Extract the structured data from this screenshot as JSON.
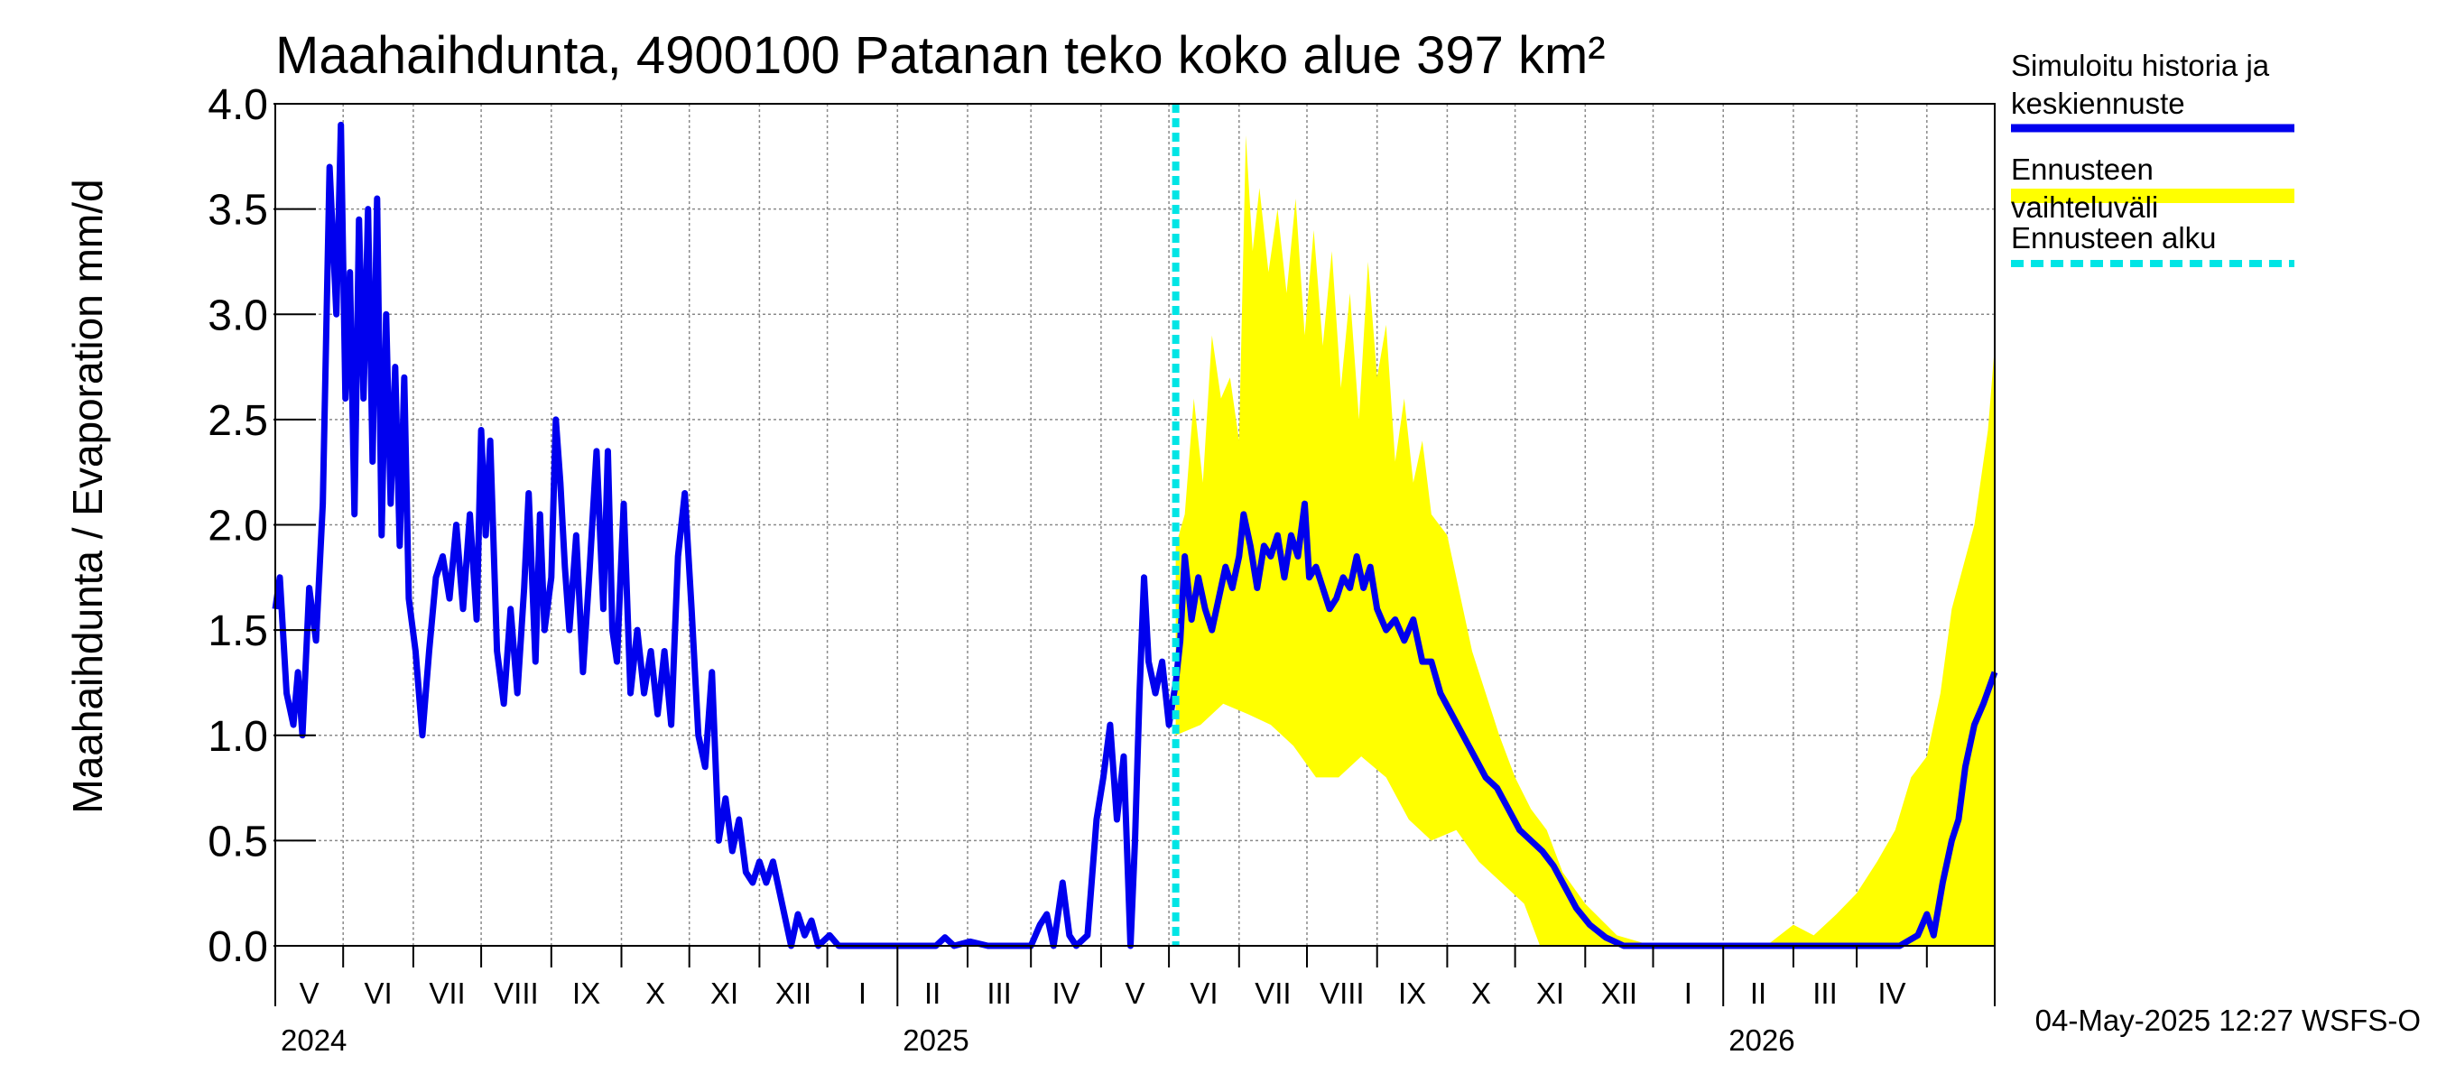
{
  "title": "Maahaihdunta, 4900100 Patanan teko koko alue 397 km²",
  "ylabel": "Maahaihdunta / Evaporation   mm/d",
  "footer": "04-May-2025 12:27 WSFS-O",
  "legend": [
    {
      "label": "Simuloitu historia ja keskiennuste",
      "color": "#0000ee",
      "style": "solid"
    },
    {
      "label": "Ennusteen vaihteluväli",
      "color": "#ffff00",
      "style": "band"
    },
    {
      "label": "Ennusteen alku",
      "color": "#00e5e5",
      "style": "dashed"
    }
  ],
  "chart_data": {
    "type": "line",
    "x_start": "2024-04-01",
    "x_end": "2026-05-01",
    "ylim": [
      0,
      4.0
    ],
    "yticks": [
      "0.0",
      "0.5",
      "1.0",
      "1.5",
      "2.0",
      "2.5",
      "3.0",
      "3.5",
      "4.0"
    ],
    "grid": true,
    "months": [
      "V",
      "VI",
      "VII",
      "VIII",
      "IX",
      "X",
      "XI",
      "XII",
      "I",
      "II",
      "III",
      "IV",
      "V",
      "VI",
      "VII",
      "VIII",
      "IX",
      "X",
      "XI",
      "XII",
      "I",
      "II",
      "III",
      "IV"
    ],
    "years": [
      "2024",
      "2025",
      "2026"
    ],
    "forecast_start": "2025-05-04",
    "series": [
      {
        "name": "Simuloitu historia ja keskiennuste",
        "color": "#0000ee",
        "points": [
          [
            "2024-04-01",
            1.6
          ],
          [
            "2024-04-03",
            1.75
          ],
          [
            "2024-04-06",
            1.2
          ],
          [
            "2024-04-09",
            1.05
          ],
          [
            "2024-04-11",
            1.3
          ],
          [
            "2024-04-13",
            1.0
          ],
          [
            "2024-04-16",
            1.7
          ],
          [
            "2024-04-19",
            1.45
          ],
          [
            "2024-04-22",
            2.1
          ],
          [
            "2024-04-25",
            3.7
          ],
          [
            "2024-04-28",
            3.0
          ],
          [
            "2024-04-30",
            3.9
          ],
          [
            "2024-05-02",
            2.6
          ],
          [
            "2024-05-04",
            3.2
          ],
          [
            "2024-05-06",
            2.05
          ],
          [
            "2024-05-08",
            3.45
          ],
          [
            "2024-05-10",
            2.6
          ],
          [
            "2024-05-12",
            3.5
          ],
          [
            "2024-05-14",
            2.3
          ],
          [
            "2024-05-16",
            3.55
          ],
          [
            "2024-05-18",
            1.95
          ],
          [
            "2024-05-20",
            3.0
          ],
          [
            "2024-05-22",
            2.1
          ],
          [
            "2024-05-24",
            2.75
          ],
          [
            "2024-05-26",
            1.9
          ],
          [
            "2024-05-28",
            2.7
          ],
          [
            "2024-05-30",
            1.65
          ],
          [
            "2024-06-02",
            1.4
          ],
          [
            "2024-06-05",
            1.0
          ],
          [
            "2024-06-08",
            1.4
          ],
          [
            "2024-06-11",
            1.75
          ],
          [
            "2024-06-14",
            1.85
          ],
          [
            "2024-06-17",
            1.65
          ],
          [
            "2024-06-20",
            2.0
          ],
          [
            "2024-06-23",
            1.6
          ],
          [
            "2024-06-26",
            2.05
          ],
          [
            "2024-06-29",
            1.55
          ],
          [
            "2024-07-01",
            2.45
          ],
          [
            "2024-07-03",
            1.95
          ],
          [
            "2024-07-05",
            2.4
          ],
          [
            "2024-07-08",
            1.4
          ],
          [
            "2024-07-11",
            1.15
          ],
          [
            "2024-07-14",
            1.6
          ],
          [
            "2024-07-17",
            1.2
          ],
          [
            "2024-07-20",
            1.7
          ],
          [
            "2024-07-22",
            2.15
          ],
          [
            "2024-07-25",
            1.35
          ],
          [
            "2024-07-27",
            2.05
          ],
          [
            "2024-07-29",
            1.5
          ],
          [
            "2024-08-01",
            1.75
          ],
          [
            "2024-08-03",
            2.5
          ],
          [
            "2024-08-05",
            2.2
          ],
          [
            "2024-08-07",
            1.8
          ],
          [
            "2024-08-09",
            1.5
          ],
          [
            "2024-08-12",
            1.95
          ],
          [
            "2024-08-15",
            1.3
          ],
          [
            "2024-08-18",
            1.8
          ],
          [
            "2024-08-21",
            2.35
          ],
          [
            "2024-08-24",
            1.6
          ],
          [
            "2024-08-26",
            2.35
          ],
          [
            "2024-08-28",
            1.5
          ],
          [
            "2024-08-30",
            1.35
          ],
          [
            "2024-09-02",
            2.1
          ],
          [
            "2024-09-05",
            1.2
          ],
          [
            "2024-09-08",
            1.5
          ],
          [
            "2024-09-11",
            1.2
          ],
          [
            "2024-09-14",
            1.4
          ],
          [
            "2024-09-17",
            1.1
          ],
          [
            "2024-09-20",
            1.4
          ],
          [
            "2024-09-23",
            1.05
          ],
          [
            "2024-09-26",
            1.85
          ],
          [
            "2024-09-29",
            2.15
          ],
          [
            "2024-10-02",
            1.6
          ],
          [
            "2024-10-05",
            1.0
          ],
          [
            "2024-10-08",
            0.85
          ],
          [
            "2024-10-11",
            1.3
          ],
          [
            "2024-10-14",
            0.5
          ],
          [
            "2024-10-17",
            0.7
          ],
          [
            "2024-10-20",
            0.45
          ],
          [
            "2024-10-23",
            0.6
          ],
          [
            "2024-10-26",
            0.35
          ],
          [
            "2024-10-29",
            0.3
          ],
          [
            "2024-11-01",
            0.4
          ],
          [
            "2024-11-04",
            0.3
          ],
          [
            "2024-11-07",
            0.4
          ],
          [
            "2024-11-10",
            0.25
          ],
          [
            "2024-11-13",
            0.1
          ],
          [
            "2024-11-15",
            0.0
          ],
          [
            "2024-11-18",
            0.15
          ],
          [
            "2024-11-21",
            0.05
          ],
          [
            "2024-11-24",
            0.12
          ],
          [
            "2024-11-27",
            0.0
          ],
          [
            "2024-12-02",
            0.05
          ],
          [
            "2024-12-06",
            0.0
          ],
          [
            "2024-12-15",
            0.0
          ],
          [
            "2025-01-01",
            0.0
          ],
          [
            "2025-01-18",
            0.0
          ],
          [
            "2025-01-22",
            0.04
          ],
          [
            "2025-01-26",
            0.0
          ],
          [
            "2025-02-02",
            0.02
          ],
          [
            "2025-02-10",
            0.0
          ],
          [
            "2025-03-01",
            0.0
          ],
          [
            "2025-03-05",
            0.1
          ],
          [
            "2025-03-08",
            0.15
          ],
          [
            "2025-03-11",
            0.0
          ],
          [
            "2025-03-15",
            0.3
          ],
          [
            "2025-03-18",
            0.05
          ],
          [
            "2025-03-21",
            0.0
          ],
          [
            "2025-03-26",
            0.05
          ],
          [
            "2025-03-30",
            0.6
          ],
          [
            "2025-04-02",
            0.8
          ],
          [
            "2025-04-05",
            1.05
          ],
          [
            "2025-04-08",
            0.6
          ],
          [
            "2025-04-11",
            0.9
          ],
          [
            "2025-04-14",
            0.0
          ],
          [
            "2025-04-16",
            0.5
          ],
          [
            "2025-04-18",
            1.2
          ],
          [
            "2025-04-20",
            1.75
          ],
          [
            "2025-04-22",
            1.35
          ],
          [
            "2025-04-25",
            1.2
          ],
          [
            "2025-04-28",
            1.35
          ],
          [
            "2025-05-01",
            1.05
          ],
          [
            "2025-05-04",
            1.25
          ],
          [
            "2025-05-06",
            1.45
          ],
          [
            "2025-05-08",
            1.85
          ],
          [
            "2025-05-11",
            1.55
          ],
          [
            "2025-05-14",
            1.75
          ],
          [
            "2025-05-17",
            1.6
          ],
          [
            "2025-05-20",
            1.5
          ],
          [
            "2025-05-23",
            1.65
          ],
          [
            "2025-05-26",
            1.8
          ],
          [
            "2025-05-29",
            1.7
          ],
          [
            "2025-06-01",
            1.85
          ],
          [
            "2025-06-03",
            2.05
          ],
          [
            "2025-06-06",
            1.9
          ],
          [
            "2025-06-09",
            1.7
          ],
          [
            "2025-06-12",
            1.9
          ],
          [
            "2025-06-15",
            1.85
          ],
          [
            "2025-06-18",
            1.95
          ],
          [
            "2025-06-21",
            1.75
          ],
          [
            "2025-06-24",
            1.95
          ],
          [
            "2025-06-27",
            1.85
          ],
          [
            "2025-06-30",
            2.1
          ],
          [
            "2025-07-02",
            1.75
          ],
          [
            "2025-07-05",
            1.8
          ],
          [
            "2025-07-08",
            1.7
          ],
          [
            "2025-07-11",
            1.6
          ],
          [
            "2025-07-14",
            1.65
          ],
          [
            "2025-07-17",
            1.75
          ],
          [
            "2025-07-20",
            1.7
          ],
          [
            "2025-07-23",
            1.85
          ],
          [
            "2025-07-26",
            1.7
          ],
          [
            "2025-07-29",
            1.8
          ],
          [
            "2025-08-01",
            1.6
          ],
          [
            "2025-08-05",
            1.5
          ],
          [
            "2025-08-09",
            1.55
          ],
          [
            "2025-08-13",
            1.45
          ],
          [
            "2025-08-17",
            1.55
          ],
          [
            "2025-08-21",
            1.35
          ],
          [
            "2025-08-25",
            1.35
          ],
          [
            "2025-08-29",
            1.2
          ],
          [
            "2025-09-03",
            1.1
          ],
          [
            "2025-09-08",
            1.0
          ],
          [
            "2025-09-13",
            0.9
          ],
          [
            "2025-09-18",
            0.8
          ],
          [
            "2025-09-23",
            0.75
          ],
          [
            "2025-09-28",
            0.65
          ],
          [
            "2025-10-03",
            0.55
          ],
          [
            "2025-10-08",
            0.5
          ],
          [
            "2025-10-13",
            0.45
          ],
          [
            "2025-10-18",
            0.38
          ],
          [
            "2025-10-23",
            0.28
          ],
          [
            "2025-10-28",
            0.18
          ],
          [
            "2025-11-03",
            0.1
          ],
          [
            "2025-11-10",
            0.04
          ],
          [
            "2025-11-18",
            0.0
          ],
          [
            "2026-01-01",
            0.0
          ],
          [
            "2026-03-20",
            0.0
          ],
          [
            "2026-03-28",
            0.05
          ],
          [
            "2026-04-01",
            0.15
          ],
          [
            "2026-04-04",
            0.05
          ],
          [
            "2026-04-08",
            0.3
          ],
          [
            "2026-04-12",
            0.5
          ],
          [
            "2026-04-15",
            0.6
          ],
          [
            "2026-04-18",
            0.85
          ],
          [
            "2026-04-22",
            1.05
          ],
          [
            "2026-04-26",
            1.15
          ],
          [
            "2026-05-01",
            1.3
          ]
        ]
      },
      {
        "name": "Ennusteen vaihteluväli",
        "color": "#ffff00",
        "upper": [
          [
            "2025-05-04",
            1.9
          ],
          [
            "2025-05-08",
            2.05
          ],
          [
            "2025-05-12",
            2.6
          ],
          [
            "2025-05-16",
            2.2
          ],
          [
            "2025-05-20",
            2.9
          ],
          [
            "2025-05-24",
            2.6
          ],
          [
            "2025-05-28",
            2.7
          ],
          [
            "2025-06-01",
            2.4
          ],
          [
            "2025-06-04",
            3.85
          ],
          [
            "2025-06-07",
            3.3
          ],
          [
            "2025-06-10",
            3.6
          ],
          [
            "2025-06-14",
            3.2
          ],
          [
            "2025-06-18",
            3.5
          ],
          [
            "2025-06-22",
            3.1
          ],
          [
            "2025-06-26",
            3.55
          ],
          [
            "2025-06-30",
            2.9
          ],
          [
            "2025-07-04",
            3.4
          ],
          [
            "2025-07-08",
            2.85
          ],
          [
            "2025-07-12",
            3.3
          ],
          [
            "2025-07-16",
            2.65
          ],
          [
            "2025-07-20",
            3.1
          ],
          [
            "2025-07-24",
            2.5
          ],
          [
            "2025-07-28",
            3.25
          ],
          [
            "2025-08-01",
            2.7
          ],
          [
            "2025-08-05",
            2.95
          ],
          [
            "2025-08-09",
            2.3
          ],
          [
            "2025-08-13",
            2.6
          ],
          [
            "2025-08-17",
            2.2
          ],
          [
            "2025-08-21",
            2.4
          ],
          [
            "2025-08-25",
            2.05
          ],
          [
            "2025-09-01",
            1.95
          ],
          [
            "2025-09-06",
            1.7
          ],
          [
            "2025-09-12",
            1.4
          ],
          [
            "2025-09-18",
            1.2
          ],
          [
            "2025-09-24",
            1.0
          ],
          [
            "2025-10-01",
            0.8
          ],
          [
            "2025-10-08",
            0.65
          ],
          [
            "2025-10-15",
            0.55
          ],
          [
            "2025-10-22",
            0.35
          ],
          [
            "2025-11-01",
            0.2
          ],
          [
            "2025-11-15",
            0.05
          ],
          [
            "2025-12-01",
            0.0
          ],
          [
            "2026-01-20",
            0.0
          ],
          [
            "2026-02-01",
            0.1
          ],
          [
            "2026-02-10",
            0.05
          ],
          [
            "2026-02-20",
            0.15
          ],
          [
            "2026-03-01",
            0.25
          ],
          [
            "2026-03-10",
            0.4
          ],
          [
            "2026-03-18",
            0.55
          ],
          [
            "2026-03-25",
            0.8
          ],
          [
            "2026-04-01",
            0.9
          ],
          [
            "2026-04-07",
            1.2
          ],
          [
            "2026-04-12",
            1.6
          ],
          [
            "2026-04-17",
            1.8
          ],
          [
            "2026-04-22",
            2.0
          ],
          [
            "2026-04-28",
            2.45
          ],
          [
            "2026-05-01",
            2.85
          ]
        ],
        "lower": [
          [
            "2025-05-04",
            1.0
          ],
          [
            "2025-05-15",
            1.05
          ],
          [
            "2025-05-25",
            1.15
          ],
          [
            "2025-06-05",
            1.1
          ],
          [
            "2025-06-15",
            1.05
          ],
          [
            "2025-06-25",
            0.95
          ],
          [
            "2025-07-05",
            0.8
          ],
          [
            "2025-07-15",
            0.8
          ],
          [
            "2025-07-25",
            0.9
          ],
          [
            "2025-08-05",
            0.8
          ],
          [
            "2025-08-15",
            0.6
          ],
          [
            "2025-08-25",
            0.5
          ],
          [
            "2025-09-05",
            0.55
          ],
          [
            "2025-09-15",
            0.4
          ],
          [
            "2025-09-25",
            0.3
          ],
          [
            "2025-10-05",
            0.2
          ],
          [
            "2025-10-12",
            0.0
          ],
          [
            "2026-05-01",
            0.0
          ]
        ]
      }
    ]
  }
}
